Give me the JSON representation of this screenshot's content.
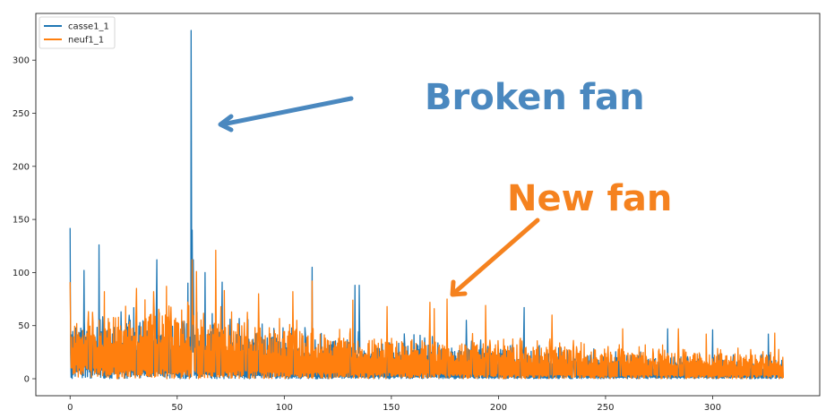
{
  "chart_data": {
    "type": "line",
    "title": "",
    "xlabel": "",
    "ylabel": "",
    "xlim": [
      -16,
      350
    ],
    "ylim": [
      -16,
      344
    ],
    "xticks": [
      0,
      50,
      100,
      150,
      200,
      250,
      300
    ],
    "yticks": [
      0,
      50,
      100,
      150,
      200,
      250,
      300
    ],
    "grid": false,
    "legend_position": "top-left",
    "series": [
      {
        "name": "casse1_1",
        "color": "#1f77b4",
        "spikes": [
          [
            0,
            142
          ],
          [
            6.5,
            102
          ],
          [
            13.5,
            126
          ],
          [
            40.5,
            112
          ],
          [
            55,
            90
          ],
          [
            56.5,
            328
          ],
          [
            57,
            140
          ],
          [
            57.5,
            112
          ],
          [
            63,
            100
          ],
          [
            71,
            91
          ],
          [
            113,
            105
          ],
          [
            133,
            88
          ],
          [
            135,
            88
          ],
          [
            185,
            55
          ],
          [
            212,
            67
          ],
          [
            279,
            47
          ],
          [
            300,
            46
          ],
          [
            326,
            42
          ]
        ],
        "envelope": [
          [
            0,
            10,
            48
          ],
          [
            20,
            8,
            52
          ],
          [
            40,
            6,
            56
          ],
          [
            60,
            5,
            52
          ],
          [
            80,
            4,
            46
          ],
          [
            100,
            3,
            40
          ],
          [
            120,
            3,
            36
          ],
          [
            150,
            3,
            34
          ],
          [
            180,
            2,
            30
          ],
          [
            200,
            2,
            28
          ],
          [
            230,
            2,
            24
          ],
          [
            260,
            2,
            22
          ],
          [
            290,
            2,
            20
          ],
          [
            320,
            2,
            18
          ],
          [
            333,
            2,
            18
          ]
        ]
      },
      {
        "name": "neuf1_1",
        "color": "#ff7f0e",
        "spikes": [
          [
            0,
            91
          ],
          [
            16,
            82
          ],
          [
            31,
            85
          ],
          [
            39,
            82
          ],
          [
            45,
            87
          ],
          [
            57,
            112
          ],
          [
            59,
            101
          ],
          [
            68,
            121
          ],
          [
            72,
            83
          ],
          [
            88,
            80
          ],
          [
            104,
            82
          ],
          [
            113,
            92
          ],
          [
            132,
            74
          ],
          [
            148,
            68
          ],
          [
            168,
            72
          ],
          [
            170,
            66
          ],
          [
            176,
            75
          ],
          [
            194,
            69
          ],
          [
            225,
            60
          ],
          [
            258,
            47
          ],
          [
            284,
            47
          ],
          [
            297,
            42
          ],
          [
            329,
            43
          ]
        ],
        "envelope": [
          [
            0,
            14,
            54
          ],
          [
            20,
            12,
            58
          ],
          [
            40,
            10,
            62
          ],
          [
            60,
            8,
            58
          ],
          [
            80,
            8,
            52
          ],
          [
            100,
            7,
            46
          ],
          [
            120,
            6,
            42
          ],
          [
            150,
            6,
            38
          ],
          [
            180,
            5,
            35
          ],
          [
            200,
            5,
            33
          ],
          [
            230,
            4,
            30
          ],
          [
            260,
            4,
            27
          ],
          [
            290,
            4,
            25
          ],
          [
            320,
            4,
            23
          ],
          [
            333,
            4,
            22
          ]
        ]
      }
    ],
    "annotations": [
      {
        "text": "Broken fan",
        "color": "#4a88bf"
      },
      {
        "text": "New fan",
        "color": "#f5821f"
      }
    ]
  }
}
